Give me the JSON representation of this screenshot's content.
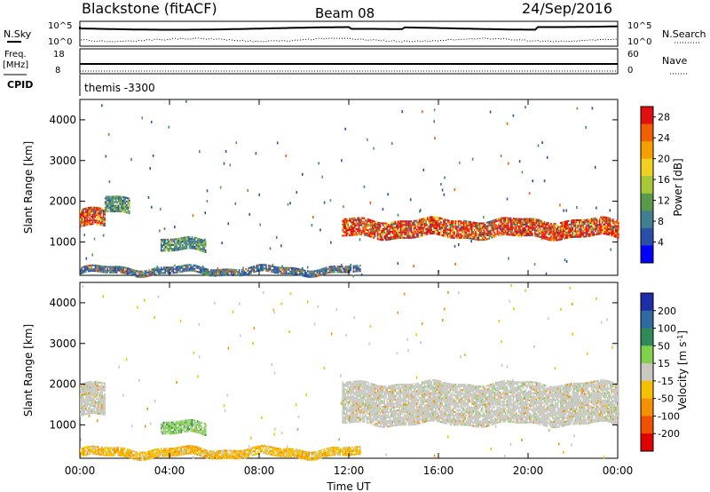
{
  "header": {
    "station": "Blackstone (fitACF)",
    "beam": "Beam 08",
    "date": "24/Sep/2016"
  },
  "noise_panel": {
    "left_label": "N.Sky",
    "right_label": "N.Search",
    "left_ticks": [
      "10^5",
      "10^0"
    ],
    "right_ticks": [
      "10^5",
      "10^0"
    ]
  },
  "freq_panel": {
    "left_label": "Freq.",
    "left_unit": "[MHz]",
    "left_ticks": [
      "18",
      "8"
    ],
    "right_label": "Nave",
    "right_ticks": [
      "60",
      "0"
    ]
  },
  "cpid_panel": {
    "label": "CPID",
    "value": "themis -3300"
  },
  "chart_data": [
    {
      "type": "heatmap",
      "ylabel": "Slant Range [km]",
      "yticks": [
        1000,
        2000,
        3000,
        4000
      ],
      "ylim": [
        180,
        4500
      ],
      "xlim": [
        0,
        24
      ],
      "colorbar": {
        "label": "Power [dB]",
        "ticks": [
          "4",
          "8",
          "12",
          "16",
          "20",
          "24",
          "28"
        ],
        "range": [
          0,
          30
        ],
        "colors": [
          "#0000ff",
          "#2b4fa8",
          "#3f7f8f",
          "#5a9a4a",
          "#a8c83a",
          "#f0d020",
          "#f5a000",
          "#f06000",
          "#e01010"
        ]
      },
      "bands": [
        {
          "t0": 0.0,
          "t1": 1.1,
          "r0": 1350,
          "r1": 1800,
          "level": "high"
        },
        {
          "t0": 1.1,
          "t1": 2.2,
          "r0": 1700,
          "r1": 2100,
          "level": "mid"
        },
        {
          "t0": 11.7,
          "t1": 24.0,
          "r0": 1100,
          "r1": 1550,
          "level": "high"
        },
        {
          "t0": 3.6,
          "t1": 5.6,
          "r0": 750,
          "r1": 1050,
          "level": "mid"
        },
        {
          "t0": 0.0,
          "t1": 12.5,
          "r0": 200,
          "r1": 380,
          "level": "low"
        }
      ]
    },
    {
      "type": "heatmap",
      "ylabel": "Slant Range [km]",
      "yticks": [
        1000,
        2000,
        3000,
        4000
      ],
      "ylim": [
        180,
        4500
      ],
      "xlim": [
        0,
        24
      ],
      "colorbar": {
        "label": "Velocity [m s^-1]",
        "ticks": [
          "200",
          "100",
          "50",
          "15",
          "-15",
          "-50",
          "-100",
          "-200"
        ],
        "colors": [
          "#1e2ea8",
          "#2f6ba0",
          "#2e8b57",
          "#7fd04a",
          "#c8c8c0",
          "#f5c000",
          "#f59000",
          "#f05000",
          "#e00000"
        ]
      },
      "bands": [
        {
          "t0": 0.0,
          "t1": 1.1,
          "r0": 1200,
          "r1": 2000,
          "level": "grey"
        },
        {
          "t0": 11.7,
          "t1": 24.0,
          "r0": 1000,
          "r1": 2000,
          "level": "grey"
        },
        {
          "t0": 3.6,
          "t1": 5.6,
          "r0": 750,
          "r1": 1050,
          "level": "green"
        },
        {
          "t0": 0.0,
          "t1": 12.5,
          "r0": 200,
          "r1": 400,
          "level": "orange"
        }
      ]
    }
  ],
  "x_axis": {
    "ticks": [
      "00:00",
      "04:00",
      "08:00",
      "12:00",
      "16:00",
      "20:00",
      "00:00"
    ],
    "label": "Time UT"
  }
}
